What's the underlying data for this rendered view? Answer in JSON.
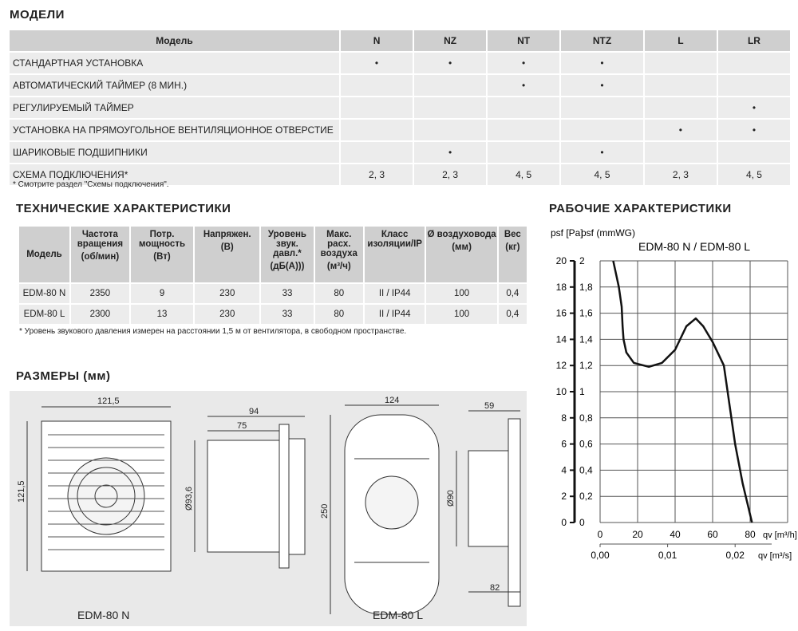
{
  "models": {
    "title": "МОДЕЛИ",
    "header": [
      "Модель",
      "N",
      "NZ",
      "NT",
      "NTZ",
      "L",
      "LR"
    ],
    "rows": [
      [
        "СТАНДАРТНАЯ УСТАНОВКА",
        "•",
        "•",
        "•",
        "•",
        "",
        ""
      ],
      [
        "АВТОМАТИЧЕСКИЙ ТАЙМЕР (8 МИН.)",
        "",
        "",
        "•",
        "•",
        "",
        ""
      ],
      [
        "РЕГУЛИРУЕМЫЙ ТАЙМЕР",
        "",
        "",
        "",
        "",
        "",
        "•"
      ],
      [
        "УСТАНОВКА НА ПРЯМОУГОЛЬНОЕ ВЕНТИЛЯЦИОННОЕ ОТВЕРСТИЕ",
        "",
        "",
        "",
        "",
        "•",
        "•"
      ],
      [
        "ШАРИКОВЫЕ ПОДШИПНИКИ",
        "",
        "•",
        "",
        "•",
        "",
        ""
      ],
      [
        "СХЕМА ПОДКЛЮЧЕНИЯ*",
        "2, 3",
        "2, 3",
        "4, 5",
        "4, 5",
        "2, 3",
        "4, 5"
      ]
    ],
    "note": "* Смотрите раздел \"Схемы подключения\"."
  },
  "tech": {
    "title": "ТЕХНИЧЕСКИЕ ХАРАКТЕРИСТИКИ",
    "header": [
      [
        "Модель",
        ""
      ],
      [
        "Частота вращения",
        "(об/мин)"
      ],
      [
        "Потр. мощность",
        "(Вт)"
      ],
      [
        "Напряжен.",
        "(В)"
      ],
      [
        "Уровень звук. давл.*",
        "(дБ(А)))"
      ],
      [
        "Макс. расх. воздуха",
        "(м³/ч)"
      ],
      [
        "Класс изоляции/IP",
        ""
      ],
      [
        "Ø воздуховода",
        "(мм)"
      ],
      [
        "Вес",
        "(кг)"
      ]
    ],
    "rows": [
      [
        "EDM-80 N",
        "2350",
        "9",
        "230",
        "33",
        "80",
        "II / IP44",
        "100",
        "0,4"
      ],
      [
        "EDM-80 L",
        "2300",
        "13",
        "230",
        "33",
        "80",
        "II / IP44",
        "100",
        "0,4"
      ]
    ],
    "note": "* Уровень звукового давления измерен на расстоянии 1,5 м от вентилятора, в свободном пространстве."
  },
  "dims": {
    "title": "РАЗМЕРЫ (мм)",
    "labels": [
      "121,5",
      "121,5",
      "94",
      "75",
      "Ø93,6",
      "124",
      "250",
      "59",
      "Ø90",
      "82"
    ],
    "caption_n": "EDM-80 N",
    "caption_l": "EDM-80 L"
  },
  "chart_data": {
    "type": "line",
    "title": "РАБОЧИЕ ХАРАКТЕРИСТИКИ",
    "subtitle": "EDM-80 N / EDM-80 L",
    "ylabel_pa": "psf [Pa]",
    "ylabel_mm": "psf (mmWG)",
    "xlabel": "qv [m³/h]",
    "xlabel2": "qv [m³/s]",
    "xlim": [
      0,
      100
    ],
    "ylim": [
      0,
      20
    ],
    "grid": true,
    "x_ticks": [
      "0",
      "20",
      "40",
      "60",
      "80"
    ],
    "x2_ticks": [
      "0,00",
      "0,01",
      "0,02"
    ],
    "y_ticks_pa": [
      "0",
      "2",
      "4",
      "6",
      "8",
      "10",
      "12",
      "14",
      "16",
      "18",
      "20"
    ],
    "y_ticks_mm": [
      "0",
      "0,2",
      "0,4",
      "0,6",
      "0,8",
      "1",
      "1,2",
      "1,4",
      "1,6",
      "1,8",
      "2"
    ],
    "series": [
      {
        "x": [
          7,
          10,
          11.5,
          12,
          12.5,
          14,
          18,
          26,
          33,
          40,
          46,
          51,
          55,
          60,
          66,
          68,
          72,
          76,
          81
        ],
        "y": [
          20,
          18,
          16.5,
          15,
          14,
          13,
          12.2,
          11.9,
          12.2,
          13.2,
          15,
          15.6,
          15,
          13.8,
          12,
          10,
          6,
          3,
          0
        ]
      }
    ]
  }
}
